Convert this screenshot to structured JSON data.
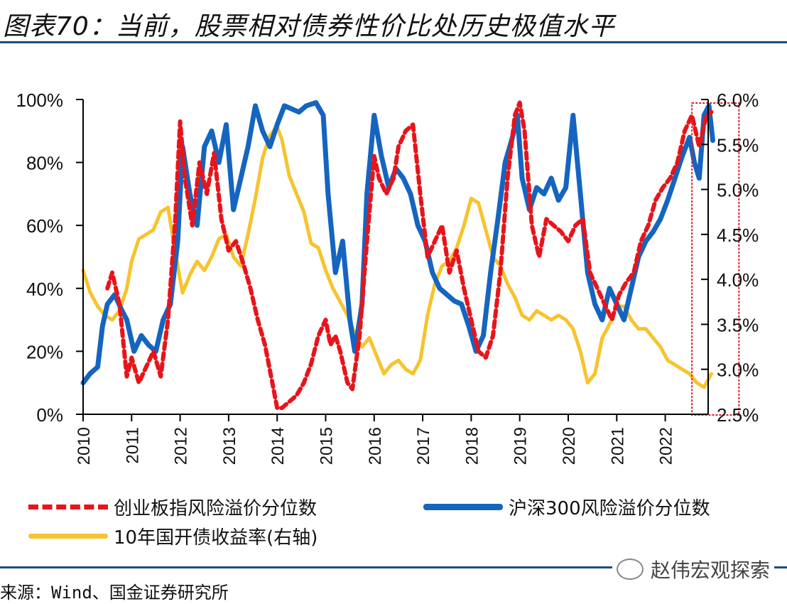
{
  "title": "图表70：当前，股票相对债券性价比处历史极值水平",
  "source": "来源：Wind、国金证券研究所",
  "watermark": "赵伟宏观探索",
  "chart_data": {
    "type": "line",
    "title": "图表70：当前，股票相对债券性价比处历史极值水平",
    "xlabel": "",
    "ylabel_left": "",
    "ylabel_right": "",
    "x_ticks": [
      "2010",
      "2011",
      "2012",
      "2013",
      "2014",
      "2015",
      "2016",
      "2017",
      "2018",
      "2019",
      "2020",
      "2021",
      "2022"
    ],
    "x_range": [
      2010,
      2023.05
    ],
    "y_left": {
      "range": [
        0,
        100
      ],
      "ticks": [
        "0%",
        "20%",
        "40%",
        "60%",
        "80%",
        "100%"
      ],
      "tick_values": [
        0,
        20,
        40,
        60,
        80,
        100
      ]
    },
    "y_right": {
      "range": [
        2.5,
        6.0
      ],
      "ticks": [
        "2.5%",
        "3.0%",
        "3.5%",
        "4.0%",
        "4.5%",
        "5.0%",
        "5.5%",
        "6.0%"
      ],
      "tick_values": [
        2.5,
        3.0,
        3.5,
        4.0,
        4.5,
        5.0,
        5.5,
        6.0
      ]
    },
    "legend_position": "bottom",
    "highlight_box": {
      "x_from": 2022.55,
      "x_to": 2023.05,
      "note": "red dotted box marking current extreme"
    },
    "series": [
      {
        "name": "创业板指风险溢价分位数",
        "axis": "left",
        "style": "dashed",
        "color": "#e8141b",
        "x": [
          2010.5,
          2010.6,
          2010.75,
          2010.9,
          2011.0,
          2011.15,
          2011.3,
          2011.45,
          2011.6,
          2011.75,
          2011.9,
          2012.0,
          2012.1,
          2012.25,
          2012.4,
          2012.55,
          2012.7,
          2012.85,
          2013.0,
          2013.15,
          2013.3,
          2013.45,
          2013.6,
          2013.75,
          2013.9,
          2014.0,
          2014.1,
          2014.25,
          2014.4,
          2014.55,
          2014.7,
          2014.85,
          2015.0,
          2015.1,
          2015.2,
          2015.3,
          2015.45,
          2015.55,
          2015.7,
          2015.85,
          2016.0,
          2016.1,
          2016.25,
          2016.4,
          2016.5,
          2016.65,
          2016.8,
          2016.95,
          2017.1,
          2017.25,
          2017.4,
          2017.55,
          2017.7,
          2017.85,
          2018.0,
          2018.15,
          2018.3,
          2018.45,
          2018.6,
          2018.75,
          2018.9,
          2019.0,
          2019.1,
          2019.25,
          2019.4,
          2019.55,
          2019.7,
          2019.85,
          2020.0,
          2020.15,
          2020.3,
          2020.45,
          2020.6,
          2020.75,
          2020.9,
          2021.05,
          2021.2,
          2021.35,
          2021.5,
          2021.65,
          2021.8,
          2021.95,
          2022.1,
          2022.25,
          2022.4,
          2022.55,
          2022.7,
          2022.85,
          2022.95
        ],
        "values": [
          40,
          45,
          35,
          12,
          18,
          10,
          15,
          20,
          12,
          30,
          62,
          93,
          75,
          60,
          80,
          70,
          83,
          62,
          52,
          55,
          48,
          40,
          30,
          22,
          10,
          2,
          2,
          4,
          6,
          10,
          16,
          25,
          30,
          22,
          25,
          20,
          10,
          8,
          25,
          55,
          82,
          75,
          70,
          75,
          85,
          90,
          92,
          70,
          50,
          55,
          60,
          45,
          52,
          40,
          30,
          20,
          18,
          25,
          45,
          75,
          95,
          99,
          90,
          60,
          50,
          62,
          60,
          58,
          55,
          60,
          62,
          45,
          40,
          35,
          30,
          38,
          42,
          45,
          55,
          60,
          68,
          72,
          75,
          80,
          90,
          95,
          85,
          95,
          96
        ]
      },
      {
        "name": "沪深300风险溢价分位数",
        "axis": "left",
        "style": "solid",
        "color": "#1565c0",
        "x": [
          2010.0,
          2010.15,
          2010.3,
          2010.4,
          2010.5,
          2010.65,
          2010.8,
          2010.9,
          2011.05,
          2011.2,
          2011.35,
          2011.5,
          2011.65,
          2011.8,
          2011.95,
          2012.05,
          2012.2,
          2012.35,
          2012.5,
          2012.65,
          2012.8,
          2012.95,
          2013.1,
          2013.25,
          2013.4,
          2013.55,
          2013.7,
          2013.85,
          2014.0,
          2014.15,
          2014.3,
          2014.45,
          2014.6,
          2014.8,
          2014.95,
          2015.05,
          2015.2,
          2015.35,
          2015.5,
          2015.6,
          2015.75,
          2015.85,
          2016.0,
          2016.15,
          2016.3,
          2016.45,
          2016.6,
          2016.75,
          2016.9,
          2017.05,
          2017.2,
          2017.35,
          2017.5,
          2017.65,
          2017.8,
          2017.95,
          2018.1,
          2018.25,
          2018.4,
          2018.55,
          2018.7,
          2018.85,
          2018.95,
          2019.05,
          2019.2,
          2019.35,
          2019.5,
          2019.65,
          2019.8,
          2019.95,
          2020.1,
          2020.25,
          2020.4,
          2020.55,
          2020.7,
          2020.85,
          2021.0,
          2021.15,
          2021.3,
          2021.45,
          2021.6,
          2021.75,
          2021.9,
          2022.05,
          2022.2,
          2022.35,
          2022.5,
          2022.6,
          2022.7,
          2022.8,
          2022.9,
          2022.98
        ],
        "values": [
          10,
          13,
          15,
          28,
          35,
          38,
          33,
          30,
          20,
          25,
          22,
          20,
          30,
          35,
          55,
          85,
          70,
          60,
          85,
          90,
          80,
          92,
          65,
          75,
          85,
          98,
          90,
          85,
          92,
          98,
          97,
          96,
          98,
          99,
          95,
          70,
          45,
          55,
          30,
          20,
          35,
          70,
          95,
          82,
          72,
          78,
          75,
          70,
          60,
          55,
          45,
          40,
          38,
          36,
          35,
          28,
          20,
          25,
          45,
          62,
          80,
          88,
          95,
          75,
          65,
          72,
          70,
          75,
          68,
          72,
          95,
          70,
          45,
          35,
          30,
          40,
          35,
          30,
          40,
          50,
          55,
          58,
          62,
          68,
          75,
          82,
          88,
          80,
          75,
          95,
          98,
          87
        ]
      },
      {
        "name": "10年国开债收益率(右轴)",
        "axis": "right",
        "style": "solid",
        "color": "#f7c32e",
        "x": [
          2010.0,
          2010.15,
          2010.3,
          2010.45,
          2010.6,
          2010.75,
          2010.9,
          2011.0,
          2011.15,
          2011.3,
          2011.45,
          2011.6,
          2011.75,
          2011.9,
          2012.05,
          2012.2,
          2012.35,
          2012.5,
          2012.65,
          2012.8,
          2012.95,
          2013.1,
          2013.25,
          2013.4,
          2013.55,
          2013.7,
          2013.85,
          2014.0,
          2014.1,
          2014.25,
          2014.4,
          2014.55,
          2014.7,
          2014.85,
          2015.0,
          2015.15,
          2015.3,
          2015.45,
          2015.6,
          2015.75,
          2015.9,
          2016.05,
          2016.2,
          2016.35,
          2016.5,
          2016.65,
          2016.8,
          2016.95,
          2017.1,
          2017.25,
          2017.4,
          2017.55,
          2017.7,
          2017.85,
          2018.0,
          2018.15,
          2018.3,
          2018.45,
          2018.6,
          2018.75,
          2018.9,
          2019.05,
          2019.2,
          2019.35,
          2019.5,
          2019.65,
          2019.8,
          2019.95,
          2020.1,
          2020.25,
          2020.4,
          2020.55,
          2020.7,
          2020.85,
          2021.0,
          2021.15,
          2021.3,
          2021.45,
          2021.6,
          2021.75,
          2021.9,
          2022.05,
          2022.2,
          2022.35,
          2022.5,
          2022.65,
          2022.8,
          2022.95
        ],
        "values": [
          4.1,
          3.85,
          3.7,
          3.6,
          3.55,
          3.65,
          3.9,
          4.2,
          4.45,
          4.5,
          4.55,
          4.75,
          4.8,
          4.3,
          3.85,
          4.05,
          4.2,
          4.1,
          4.25,
          4.45,
          4.5,
          4.25,
          4.15,
          4.5,
          4.9,
          5.35,
          5.6,
          5.7,
          5.55,
          5.15,
          4.95,
          4.75,
          4.4,
          4.35,
          4.1,
          3.9,
          3.75,
          3.6,
          3.4,
          3.25,
          3.35,
          3.15,
          2.95,
          3.05,
          3.1,
          3.0,
          2.95,
          3.1,
          3.6,
          3.95,
          4.15,
          4.2,
          4.35,
          4.6,
          4.9,
          4.85,
          4.55,
          4.25,
          4.15,
          3.95,
          3.8,
          3.6,
          3.55,
          3.65,
          3.6,
          3.55,
          3.6,
          3.55,
          3.45,
          3.2,
          2.85,
          2.95,
          3.35,
          3.5,
          3.7,
          3.7,
          3.55,
          3.45,
          3.45,
          3.35,
          3.25,
          3.1,
          3.05,
          3.0,
          2.95,
          2.85,
          2.8,
          2.95
        ]
      }
    ]
  }
}
